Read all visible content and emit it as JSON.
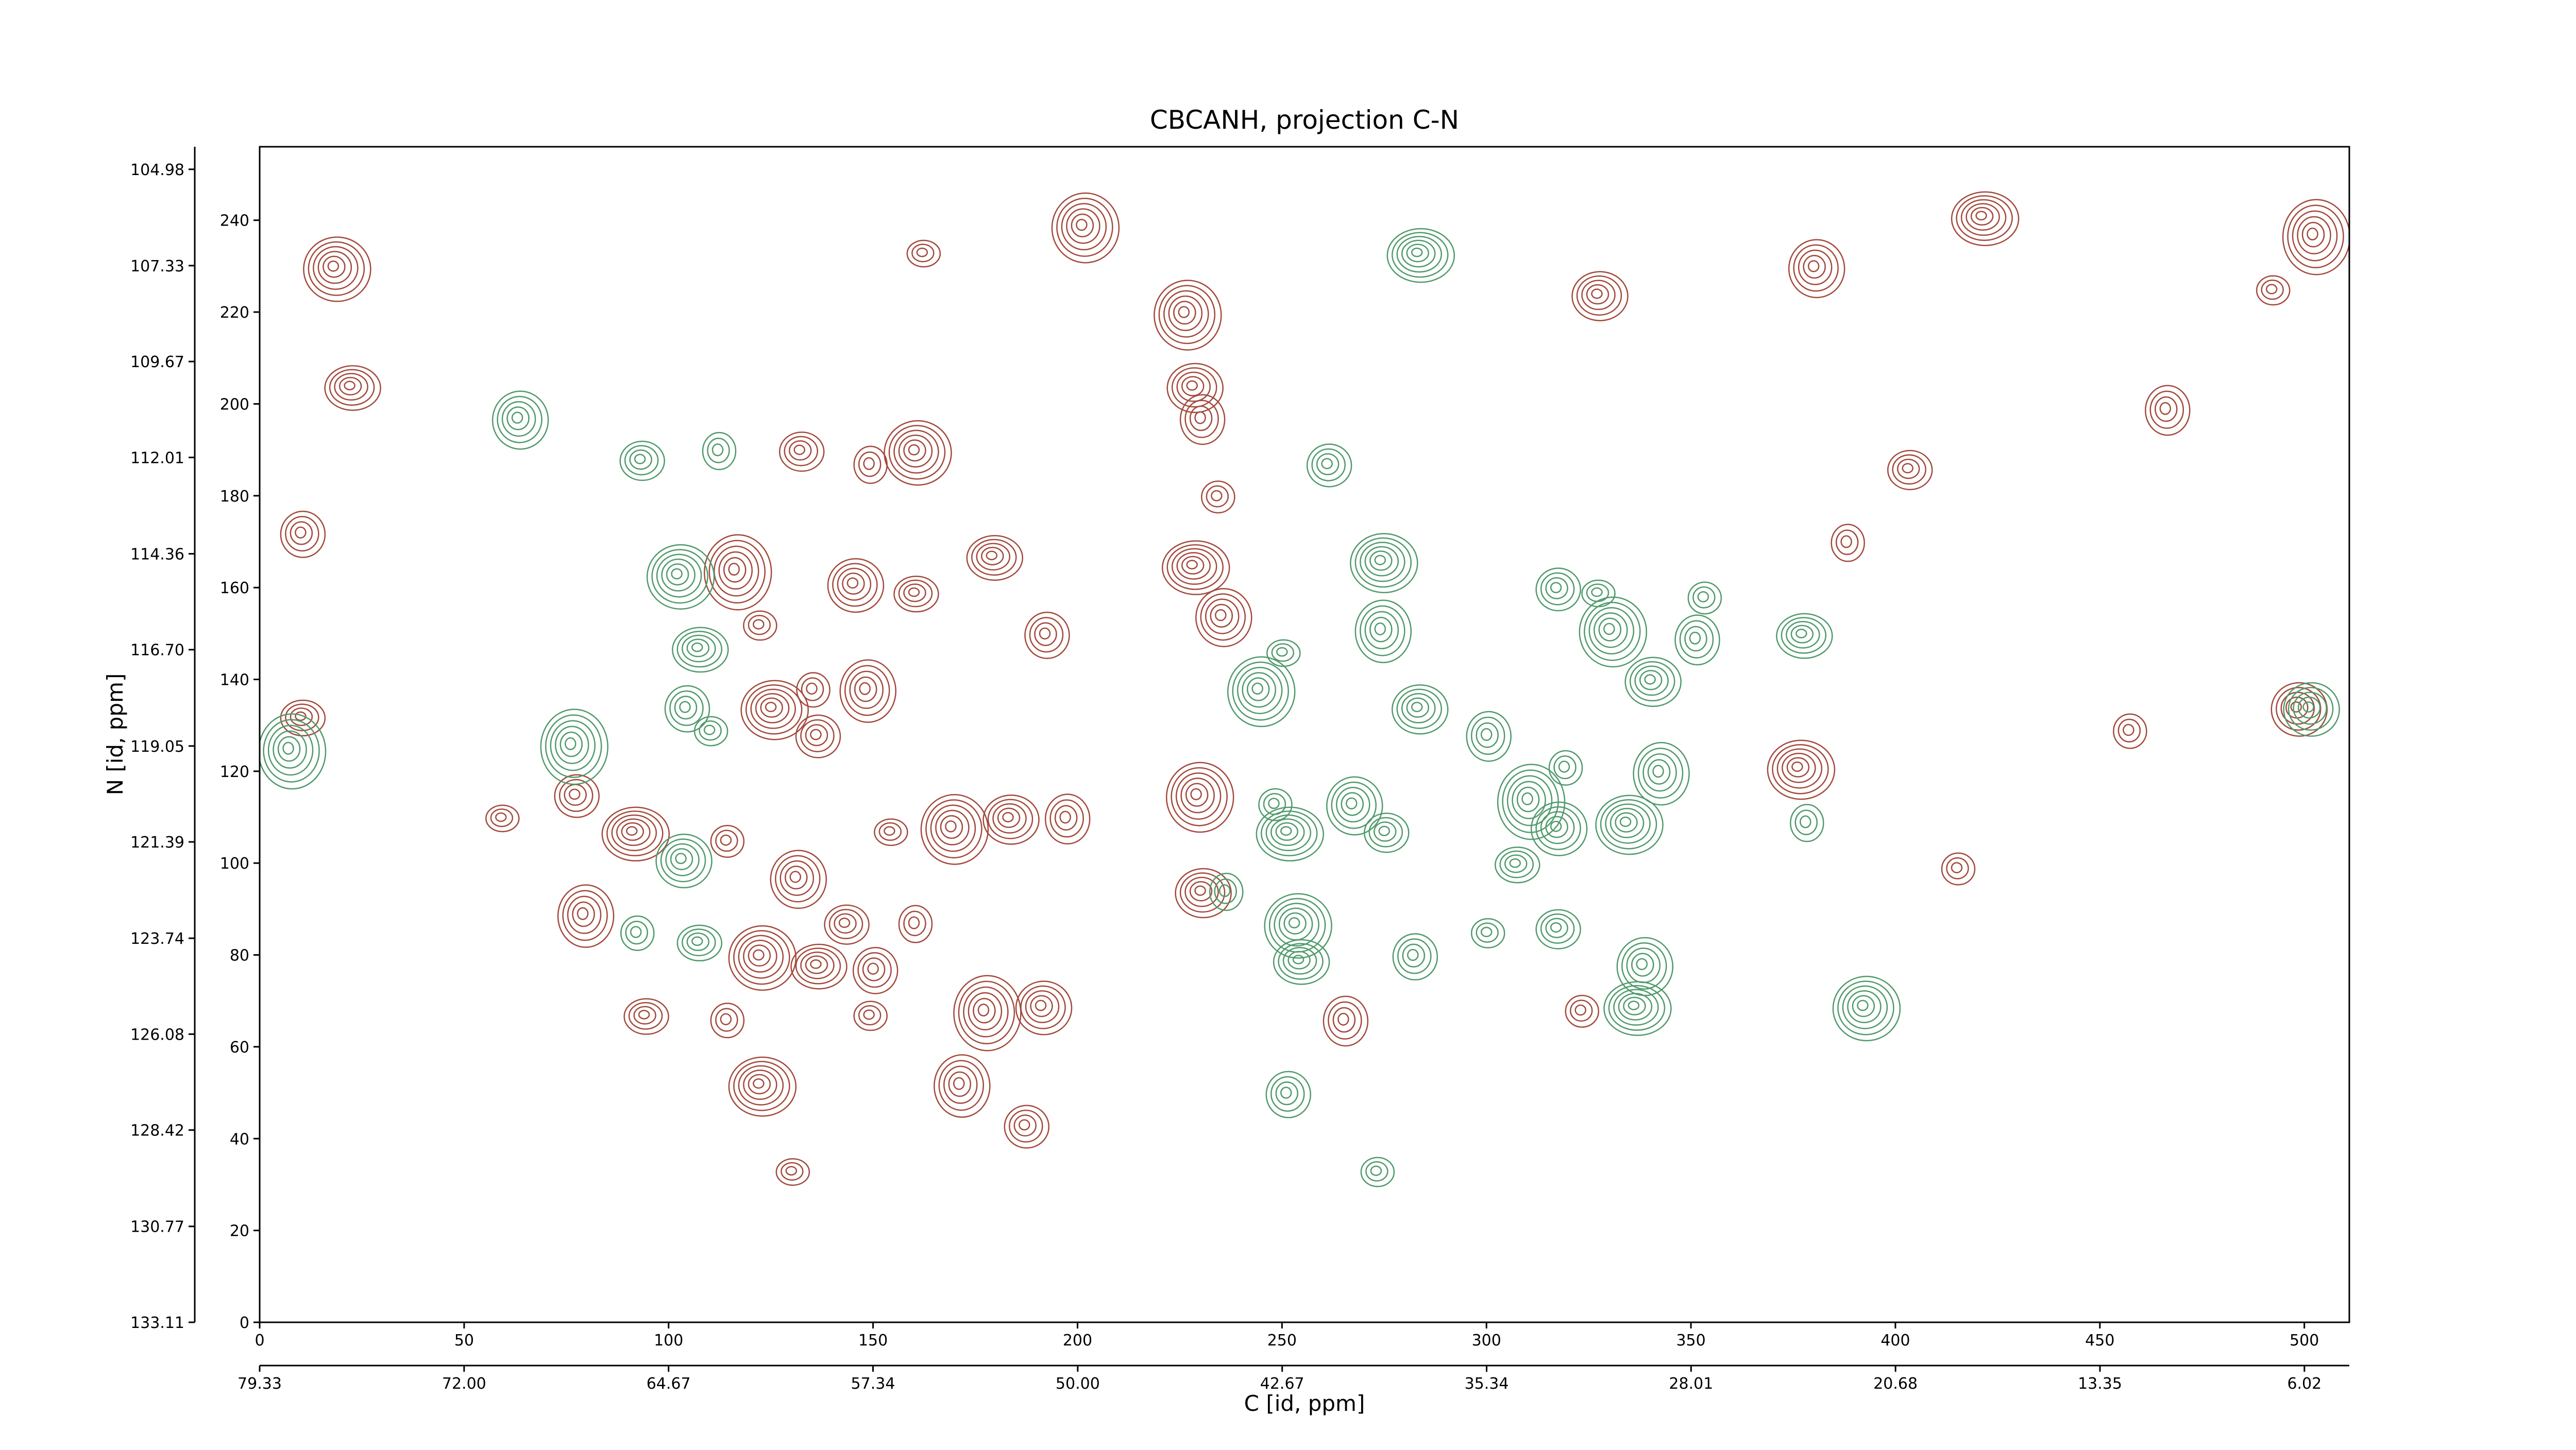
{
  "chart_data": {
    "type": "contour",
    "title": "CBCANH, projection C-N",
    "x_label": "C [id, ppm]",
    "y_label": "N [id, ppm]",
    "xlim": [
      0,
      511
    ],
    "xticks": [
      0,
      50,
      100,
      150,
      200,
      250,
      300,
      350,
      400,
      450,
      500
    ],
    "ylim": [
      0,
      256
    ],
    "yticks": [
      0,
      20,
      40,
      60,
      80,
      100,
      120,
      140,
      160,
      180,
      200,
      220,
      240
    ],
    "x2lim": [
      79.33,
      4.41
    ],
    "x2ticks": [
      79.33,
      {
        "value": 72,
        "label": "72.00"
      },
      64.67,
      57.34,
      {
        "value": 50,
        "label": "50.00"
      },
      42.67,
      35.34,
      28.01,
      20.68,
      13.35,
      6.02
    ],
    "y2lim": [
      133.11,
      104.43
    ],
    "y2ticks": [
      133.11,
      130.77,
      128.42,
      126.08,
      123.74,
      121.39,
      119.05,
      {
        "value": 116.7,
        "label": "116.70"
      },
      114.36,
      112.01,
      109.67,
      107.33,
      104.98
    ],
    "series": [
      {
        "color": "#a3493c",
        "x": [
          162,
          226,
          228,
          230,
          234,
          228,
          235,
          132,
          149,
          160,
          179,
          192,
          122,
          116,
          145,
          160,
          135,
          125,
          148,
          136,
          154,
          169,
          183,
          197,
          114,
          91,
          131,
          143,
          160,
          122,
          136,
          150,
          149,
          177,
          191,
          94,
          114,
          122,
          171,
          187,
          130,
          229,
          230,
          265,
          323,
          421,
          380,
          403,
          388,
          18,
          22,
          10,
          492,
          502,
          498,
          10,
          457,
          376,
          79,
          77,
          59,
          201,
          327,
          466,
          415
        ],
        "y": [
          233,
          220,
          204,
          197,
          180,
          165,
          154,
          190,
          187,
          190,
          167,
          150,
          152,
          164,
          161,
          159,
          138,
          134,
          138,
          128,
          107,
          108,
          110,
          110,
          105,
          107,
          97,
          87,
          87,
          80,
          78,
          77,
          67,
          68,
          69,
          67,
          66,
          52,
          52,
          43,
          33,
          115,
          94,
          66,
          68,
          241,
          230,
          186,
          170,
          230,
          204,
          172,
          225,
          237,
          134,
          132,
          129,
          121,
          89,
          115,
          110,
          239,
          224,
          199,
          99
        ]
      },
      {
        "color": "#4f9a6a",
        "x": [
          283,
          63,
          93,
          112,
          102,
          107,
          104,
          110,
          76,
          103,
          107,
          92,
          274,
          274,
          261,
          250,
          244,
          283,
          300,
          248,
          251,
          267,
          275,
          236,
          253,
          254,
          282,
          300,
          310,
          317,
          307,
          319,
          334,
          342,
          317,
          327,
          330,
          340,
          351,
          353,
          336,
          338,
          317,
          378,
          392,
          377,
          251,
          273,
          7,
          501
        ],
        "y": [
          233,
          197,
          188,
          190,
          163,
          147,
          134,
          129,
          126,
          101,
          83,
          85,
          166,
          151,
          187,
          146,
          138,
          134,
          128,
          113,
          107,
          113,
          107,
          94,
          87,
          79,
          80,
          85,
          114,
          108,
          100,
          121,
          109,
          120,
          160,
          159,
          151,
          140,
          149,
          158,
          69,
          78,
          86,
          109,
          69,
          150,
          50,
          33,
          125,
          134
        ]
      }
    ]
  }
}
